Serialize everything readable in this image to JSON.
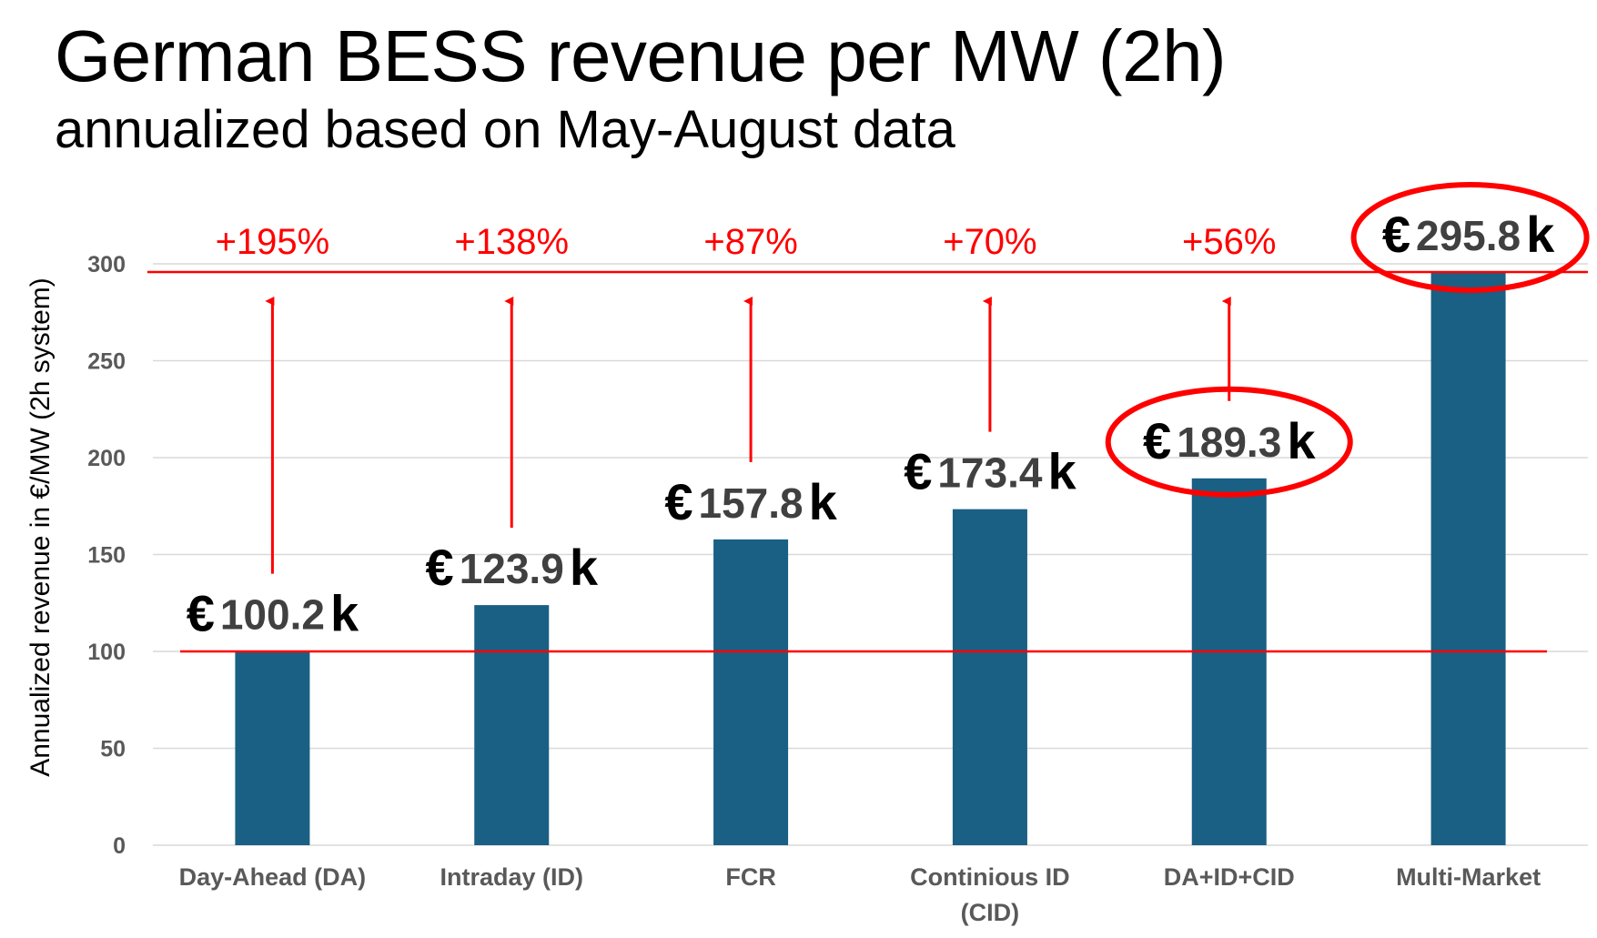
{
  "title": "German BESS revenue per MW (2h)",
  "subtitle": "annualized based on May-August data",
  "colors": {
    "bar": "#1a5f84",
    "accent": "#ff0000",
    "grid": "#d9d9d9",
    "axis_text": "#595959"
  },
  "chart_data": {
    "type": "bar",
    "ylabel": "Annualized revenue in €/MW (2h system)",
    "ylim": [
      0,
      300
    ],
    "yticks": [
      "0",
      "50",
      "100",
      "150",
      "200",
      "250",
      "300"
    ],
    "categories": [
      [
        "Day-Ahead (DA)"
      ],
      [
        "Intraday (ID)"
      ],
      [
        "FCR"
      ],
      [
        "Continious ID",
        "(CID)"
      ],
      [
        "DA+ID+CID"
      ],
      [
        "Multi-Market"
      ]
    ],
    "values": [
      100.2,
      123.9,
      157.8,
      173.4,
      189.3,
      295.8
    ],
    "value_labels": [
      {
        "currency": "€",
        "number": "100.2",
        "suffix": "k"
      },
      {
        "currency": "€",
        "number": "123.9",
        "suffix": "k"
      },
      {
        "currency": "€",
        "number": "157.8",
        "suffix": "k"
      },
      {
        "currency": "€",
        "number": "173.4",
        "suffix": "k"
      },
      {
        "currency": "€",
        "number": "189.3",
        "suffix": "k"
      },
      {
        "currency": "€",
        "number": "295.8",
        "suffix": "k"
      }
    ],
    "uplift_labels": [
      "+195%",
      "+138%",
      "+87%",
      "+70%",
      "+56%"
    ],
    "reference_lines": [
      100,
      295.8
    ],
    "highlighted": [
      "DA+ID+CID",
      "Multi-Market"
    ]
  }
}
